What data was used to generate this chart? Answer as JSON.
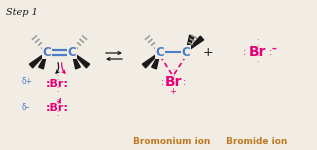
{
  "bg_color": "#f2ede4",
  "black": "#1a1a1a",
  "blue": "#4a7cc9",
  "magenta": "#e8007a",
  "orange": "#c07820",
  "gray": "#999999",
  "dark_gray": "#555555",
  "step_label": "Step 1",
  "bottom_label1": "Bromonium ion",
  "bottom_label2": "Bromide ion"
}
